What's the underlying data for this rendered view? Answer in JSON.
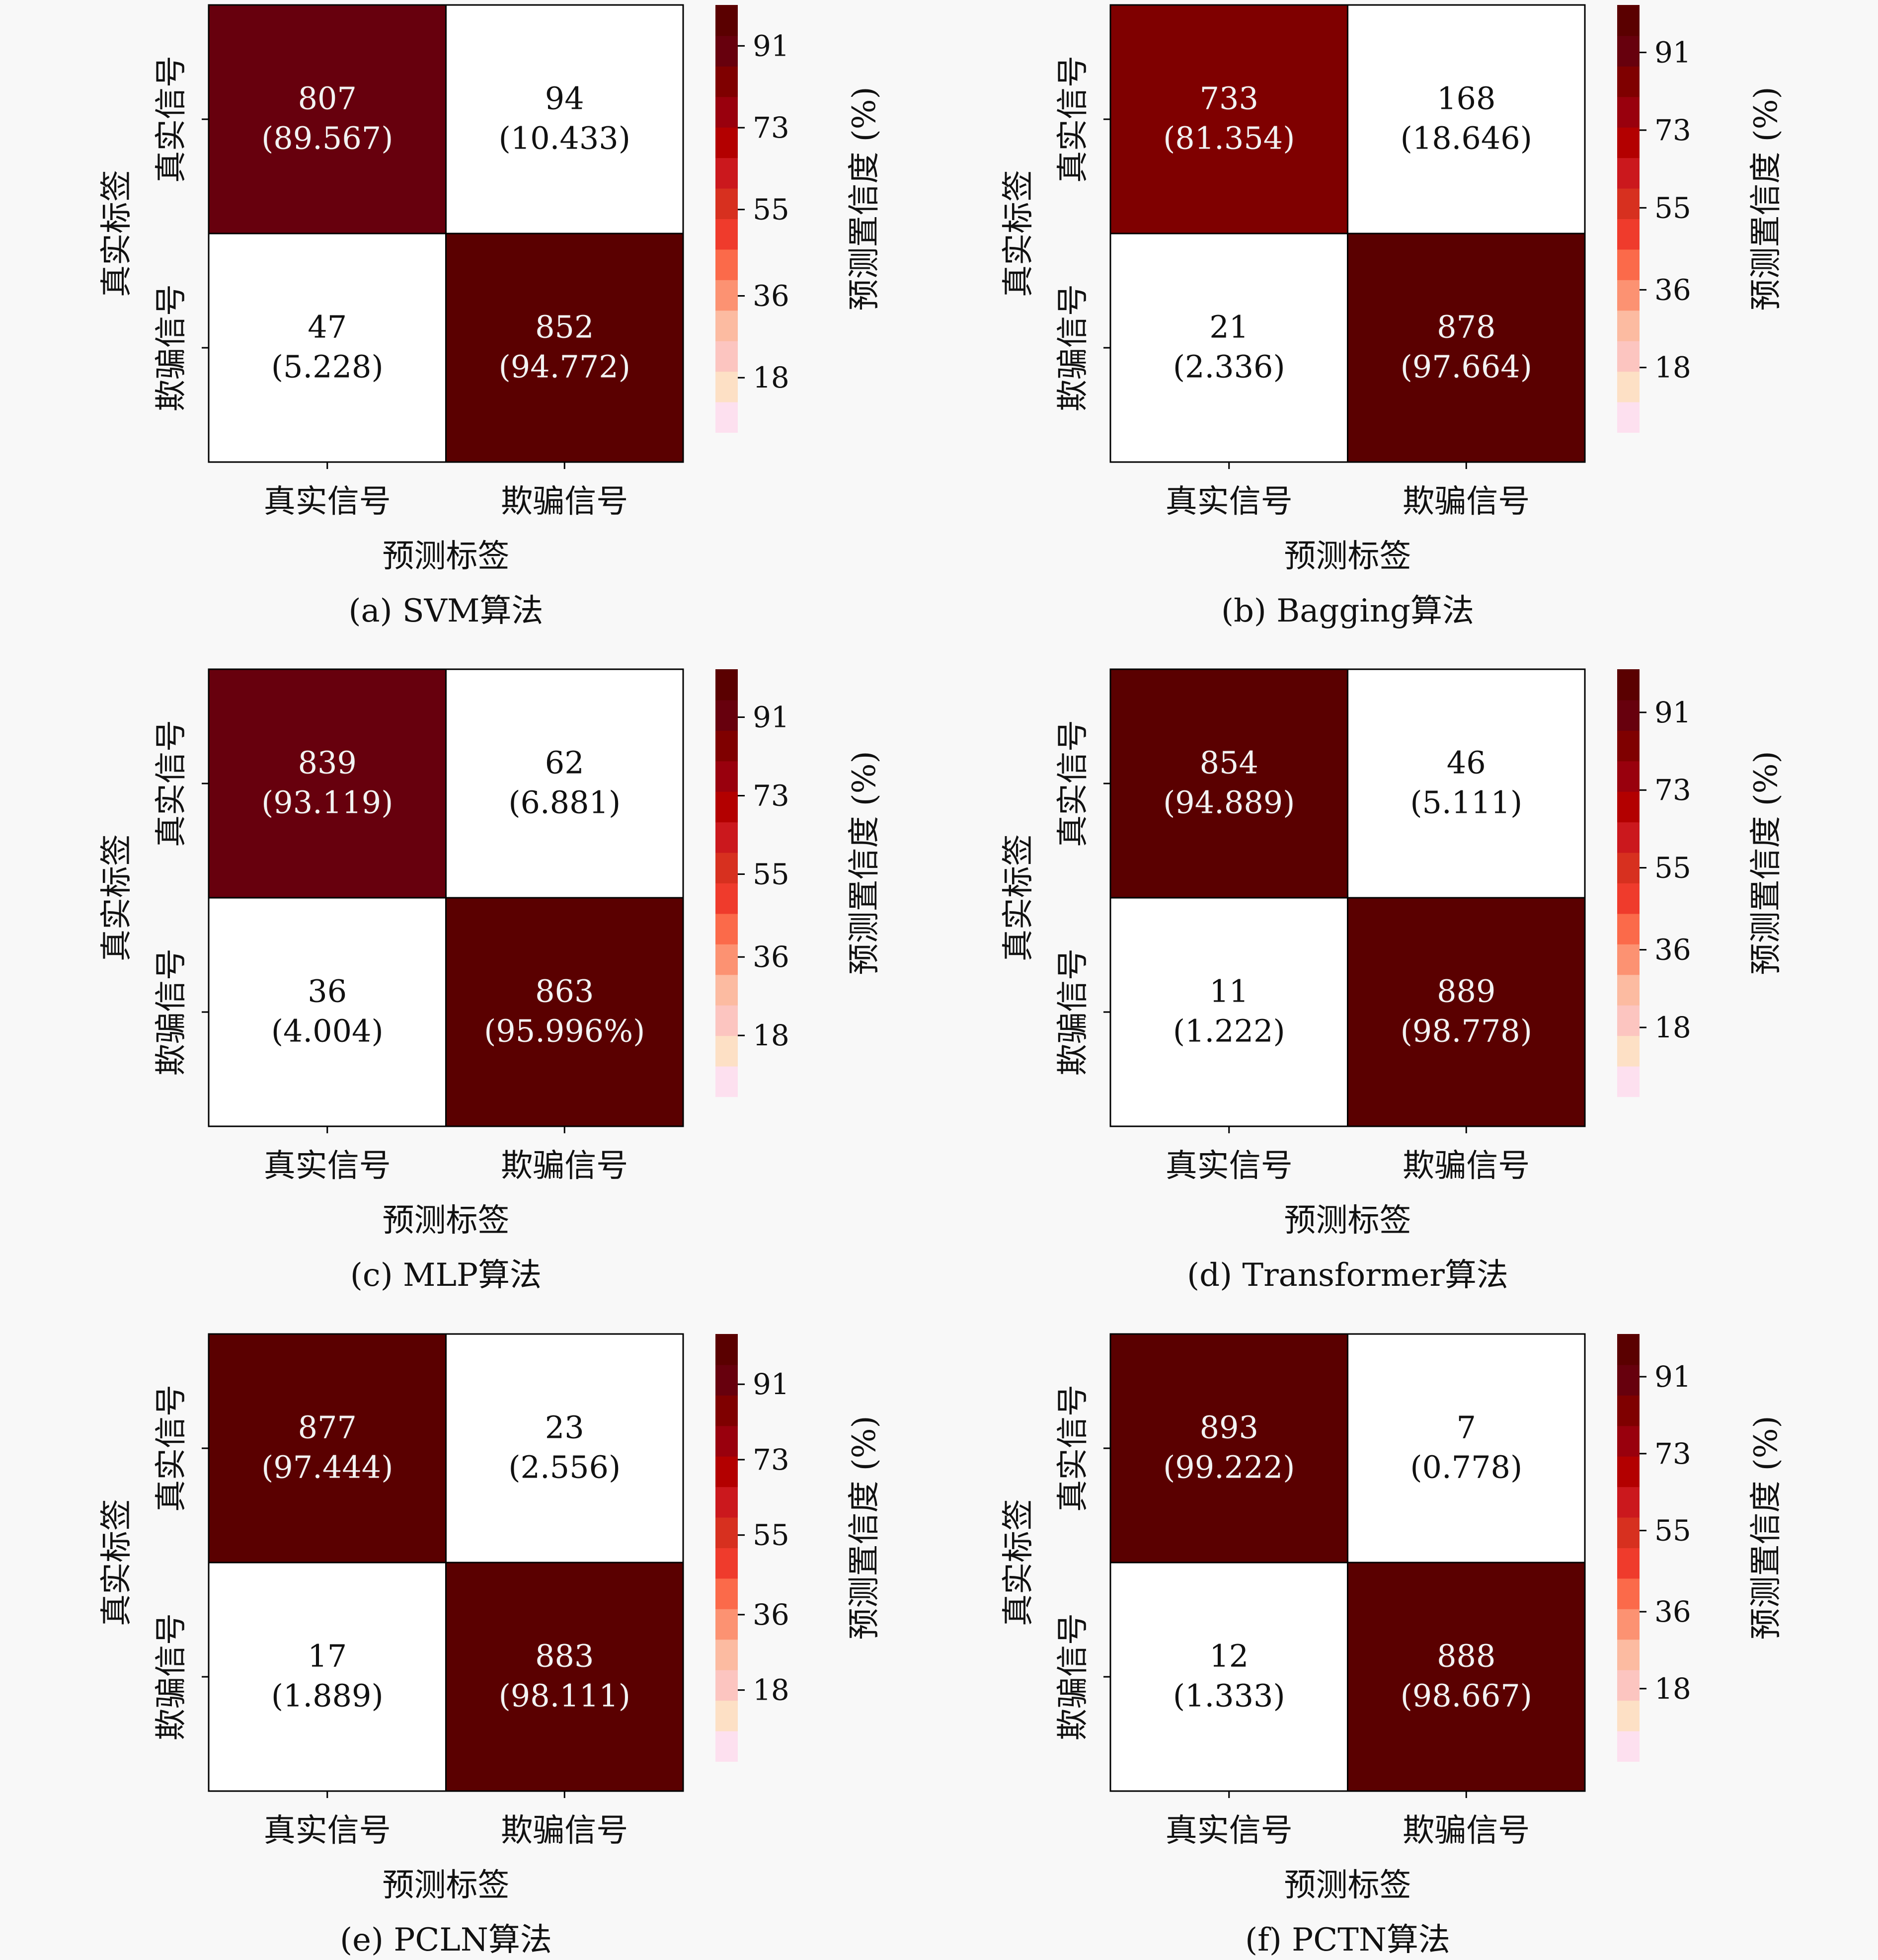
{
  "colors": {
    "background": "#f8f8f8",
    "scale": [
      "#fde0ef",
      "#fde0c5",
      "#fcc5c0",
      "#fcbba1",
      "#fc9272",
      "#fb6a4a",
      "#ef3b2c",
      "#d7301f",
      "#cb181d",
      "#b30000",
      "#99000d",
      "#7f0000",
      "#67000d",
      "#5a0000"
    ],
    "text_dark": "#111111",
    "text_light": "#f2f2f2"
  },
  "chart_data": [
    {
      "type": "heatmap",
      "caption": "(a) SVM算法",
      "xlabel": "预测标签",
      "ylabel": "真实标签",
      "x_categories": [
        "真实信号",
        "欺骗信号"
      ],
      "y_categories": [
        "真实信号",
        "欺骗信号"
      ],
      "counts": [
        [
          807,
          94
        ],
        [
          47,
          852
        ]
      ],
      "cell_labels": [
        [
          "(89.567)",
          "(10.433)"
        ],
        [
          "(5.228)",
          "(94.772)"
        ]
      ],
      "percent": [
        [
          89.567,
          10.433
        ],
        [
          5.228,
          94.772
        ]
      ],
      "colorbar": {
        "label": "预测置信度 (%)",
        "ticks": [
          "91",
          "73",
          "55",
          "36",
          "18"
        ],
        "tick_values": [
          91,
          73,
          55,
          36,
          18
        ],
        "range": [
          6,
          100
        ]
      }
    },
    {
      "type": "heatmap",
      "caption": "(b) Bagging算法",
      "xlabel": "预测标签",
      "ylabel": "真实标签",
      "x_categories": [
        "真实信号",
        "欺骗信号"
      ],
      "y_categories": [
        "真实信号",
        "欺骗信号"
      ],
      "counts": [
        [
          733,
          168
        ],
        [
          21,
          878
        ]
      ],
      "cell_labels": [
        [
          "(81.354)",
          "(18.646)"
        ],
        [
          "(2.336)",
          "(97.664)"
        ]
      ],
      "percent": [
        [
          81.354,
          18.646
        ],
        [
          2.336,
          97.664
        ]
      ],
      "colorbar": {
        "label": "预测置信度 (%)",
        "ticks": [
          "91",
          "73",
          "55",
          "36",
          "18"
        ],
        "tick_values": [
          91,
          73,
          55,
          36,
          18
        ],
        "range": [
          3,
          102
        ]
      }
    },
    {
      "type": "heatmap",
      "caption": "(c) MLP算法",
      "xlabel": "预测标签",
      "ylabel": "真实标签",
      "x_categories": [
        "真实信号",
        "欺骗信号"
      ],
      "y_categories": [
        "真实信号",
        "欺骗信号"
      ],
      "counts": [
        [
          839,
          62
        ],
        [
          36,
          863
        ]
      ],
      "cell_labels": [
        [
          "(93.119)",
          "(6.881)"
        ],
        [
          "(4.004)",
          "(95.996%)"
        ]
      ],
      "percent": [
        [
          93.119,
          6.881
        ],
        [
          4.004,
          95.996
        ]
      ],
      "colorbar": {
        "label": "预测置信度 (%)",
        "ticks": [
          "91",
          "73",
          "55",
          "36",
          "18"
        ],
        "tick_values": [
          91,
          73,
          55,
          36,
          18
        ],
        "range": [
          4,
          102
        ]
      }
    },
    {
      "type": "heatmap",
      "caption": "(d) Transformer算法",
      "xlabel": "预测标签",
      "ylabel": "真实标签",
      "x_categories": [
        "真实信号",
        "欺骗信号"
      ],
      "y_categories": [
        "真实信号",
        "欺骗信号"
      ],
      "counts": [
        [
          854,
          46
        ],
        [
          11,
          889
        ]
      ],
      "cell_labels": [
        [
          "(94.889)",
          "(5.111)"
        ],
        [
          "(1.222)",
          "(98.778)"
        ]
      ],
      "percent": [
        [
          94.889,
          5.111
        ],
        [
          1.222,
          98.778
        ]
      ],
      "colorbar": {
        "label": "预测置信度 (%)",
        "ticks": [
          "91",
          "73",
          "55",
          "36",
          "18"
        ],
        "tick_values": [
          91,
          73,
          55,
          36,
          18
        ],
        "range": [
          2,
          101
        ]
      }
    },
    {
      "type": "heatmap",
      "caption": "(e) PCLN算法",
      "xlabel": "预测标签",
      "ylabel": "真实标签",
      "x_categories": [
        "真实信号",
        "欺骗信号"
      ],
      "y_categories": [
        "真实信号",
        "欺骗信号"
      ],
      "counts": [
        [
          877,
          23
        ],
        [
          17,
          883
        ]
      ],
      "cell_labels": [
        [
          "(97.444)",
          "(2.556)"
        ],
        [
          "(1.889)",
          "(98.111)"
        ]
      ],
      "percent": [
        [
          97.444,
          2.556
        ],
        [
          1.889,
          98.111
        ]
      ],
      "colorbar": {
        "label": "预测置信度 (%)",
        "ticks": [
          "91",
          "73",
          "55",
          "36",
          "18"
        ],
        "tick_values": [
          91,
          73,
          55,
          36,
          18
        ],
        "range": [
          1,
          103
        ]
      }
    },
    {
      "type": "heatmap",
      "caption": "(f) PCTN算法",
      "xlabel": "预测标签",
      "ylabel": "真实标签",
      "x_categories": [
        "真实信号",
        "欺骗信号"
      ],
      "y_categories": [
        "真实信号",
        "欺骗信号"
      ],
      "counts": [
        [
          893,
          7
        ],
        [
          12,
          888
        ]
      ],
      "cell_labels": [
        [
          "(99.222)",
          "(0.778)"
        ],
        [
          "(1.333)",
          "(98.667)"
        ]
      ],
      "percent": [
        [
          99.222,
          0.778
        ],
        [
          1.333,
          98.667
        ]
      ],
      "colorbar": {
        "label": "预测置信度 (%)",
        "ticks": [
          "91",
          "73",
          "55",
          "36",
          "18"
        ],
        "tick_values": [
          91,
          73,
          55,
          36,
          18
        ],
        "range": [
          1,
          101
        ]
      }
    }
  ]
}
